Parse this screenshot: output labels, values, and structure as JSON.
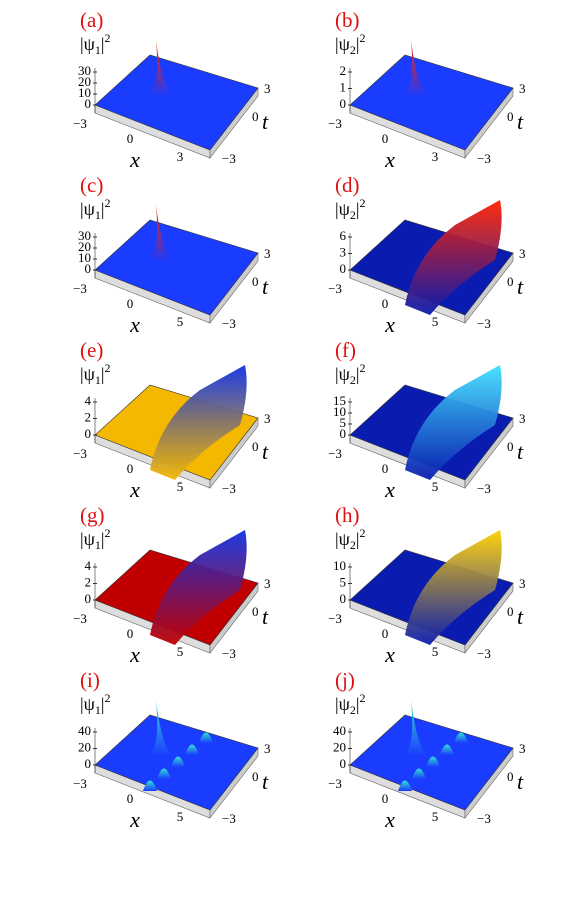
{
  "panels": [
    {
      "label": "(a)",
      "z_label": [
        "|ψ",
        "1",
        "|",
        "2"
      ],
      "z_ticks": [
        "30",
        "20",
        "10",
        "0"
      ],
      "x_ticks": [
        "−3",
        "0",
        "3"
      ],
      "t_ticks": [
        "3",
        "0",
        "−3"
      ],
      "x_label": "x",
      "t_label": "t",
      "colors": [
        "#1a3cff",
        "#ff2000"
      ]
    },
    {
      "label": "(b)",
      "z_label": [
        "|ψ",
        "2",
        "|",
        "2"
      ],
      "z_ticks": [
        "2",
        "1",
        "0"
      ],
      "x_ticks": [
        "−3",
        "0",
        "3"
      ],
      "t_ticks": [
        "3",
        "0",
        "−3"
      ],
      "x_label": "x",
      "t_label": "t",
      "colors": [
        "#1a3cff",
        "#ff2000"
      ]
    },
    {
      "label": "(c)",
      "z_label": [
        "|ψ",
        "1",
        "|",
        "2"
      ],
      "z_ticks": [
        "30",
        "20",
        "10",
        "0"
      ],
      "x_ticks": [
        "−3",
        "0",
        "5"
      ],
      "t_ticks": [
        "3",
        "0",
        "−3"
      ],
      "x_label": "x",
      "t_label": "t",
      "colors": [
        "#1a3cff",
        "#ff2000"
      ]
    },
    {
      "label": "(d)",
      "z_label": [
        "|ψ",
        "2",
        "|",
        "2"
      ],
      "z_ticks": [
        "6",
        "3",
        "0"
      ],
      "x_ticks": [
        "−3",
        "0",
        "5"
      ],
      "t_ticks": [
        "3",
        "0",
        "−3"
      ],
      "x_label": "x",
      "t_label": "t",
      "colors": [
        "#0a1cb0",
        "#ff2000"
      ]
    },
    {
      "label": "(e)",
      "z_label": [
        "|ψ",
        "1",
        "|",
        "2"
      ],
      "z_ticks": [
        "4",
        "2",
        "0"
      ],
      "x_ticks": [
        "−3",
        "0",
        "5"
      ],
      "t_ticks": [
        "3",
        "0",
        "−3"
      ],
      "x_label": "x",
      "t_label": "t",
      "colors": [
        "#f5b800",
        "#1030e0"
      ]
    },
    {
      "label": "(f)",
      "z_label": [
        "|ψ",
        "2",
        "|",
        "2"
      ],
      "z_ticks": [
        "15",
        "10",
        "5",
        "0"
      ],
      "x_ticks": [
        "−3",
        "0",
        "5"
      ],
      "t_ticks": [
        "3",
        "0",
        "−3"
      ],
      "x_label": "x",
      "t_label": "t",
      "colors": [
        "#0a1cb0",
        "#40e0ff"
      ]
    },
    {
      "label": "(g)",
      "z_label": [
        "|ψ",
        "1",
        "|",
        "2"
      ],
      "z_ticks": [
        "4",
        "2",
        "0"
      ],
      "x_ticks": [
        "−3",
        "0",
        "5"
      ],
      "t_ticks": [
        "3",
        "0",
        "−3"
      ],
      "x_label": "x",
      "t_label": "t",
      "colors": [
        "#c00000",
        "#1030e0"
      ]
    },
    {
      "label": "(h)",
      "z_label": [
        "|ψ",
        "2",
        "|",
        "2"
      ],
      "z_ticks": [
        "10",
        "5",
        "0"
      ],
      "x_ticks": [
        "−3",
        "0",
        "5"
      ],
      "t_ticks": [
        "3",
        "0",
        "−3"
      ],
      "x_label": "x",
      "t_label": "t",
      "colors": [
        "#0a1cb0",
        "#ffd000"
      ]
    },
    {
      "label": "(i)",
      "z_label": [
        "|ψ",
        "1",
        "|",
        "2"
      ],
      "z_ticks": [
        "40",
        "20",
        "0"
      ],
      "x_ticks": [
        "−3",
        "0",
        "5"
      ],
      "t_ticks": [
        "3",
        "0",
        "−3"
      ],
      "x_label": "x",
      "t_label": "t",
      "colors": [
        "#1a3cff",
        "#30e0d0"
      ]
    },
    {
      "label": "(j)",
      "z_label": [
        "|ψ",
        "2",
        "|",
        "2"
      ],
      "z_ticks": [
        "40",
        "20",
        "0"
      ],
      "x_ticks": [
        "−3",
        "0",
        "5"
      ],
      "t_ticks": [
        "3",
        "0",
        "−3"
      ],
      "x_label": "x",
      "t_label": "t",
      "colors": [
        "#1a3cff",
        "#30e0d0"
      ]
    }
  ]
}
